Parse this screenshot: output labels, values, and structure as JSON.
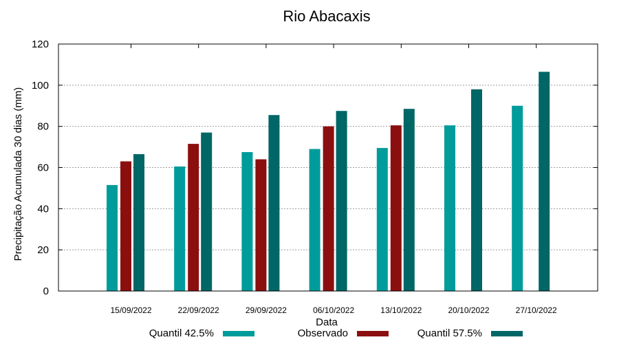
{
  "chart_data": {
    "type": "bar",
    "title": "Rio Abacaxis",
    "xlabel": "Data",
    "ylabel": "Precipitação Acumulada 30 dias (mm)",
    "ylim": [
      0,
      120
    ],
    "yticks": [
      "0",
      "20",
      "40",
      "60",
      "80",
      "100",
      "120"
    ],
    "categories": [
      "15/09/2022",
      "22/09/2022",
      "29/09/2022",
      "06/10/2022",
      "13/10/2022",
      "20/10/2022",
      "27/10/2022"
    ],
    "grid": true,
    "legend_position": "bottom",
    "series": [
      {
        "name": "Quantil 42.5%",
        "color": "#009b9b",
        "values": [
          51.5,
          60.5,
          67.5,
          69,
          69.5,
          80.5,
          90
        ]
      },
      {
        "name": "Observado",
        "color": "#8b0f0f",
        "values": [
          63,
          71.5,
          64,
          80,
          80.5,
          null,
          null
        ]
      },
      {
        "name": "Quantil 57.5%",
        "color": "#006666",
        "values": [
          66.5,
          77,
          85.5,
          87.5,
          88.5,
          98,
          106.5
        ]
      }
    ]
  }
}
